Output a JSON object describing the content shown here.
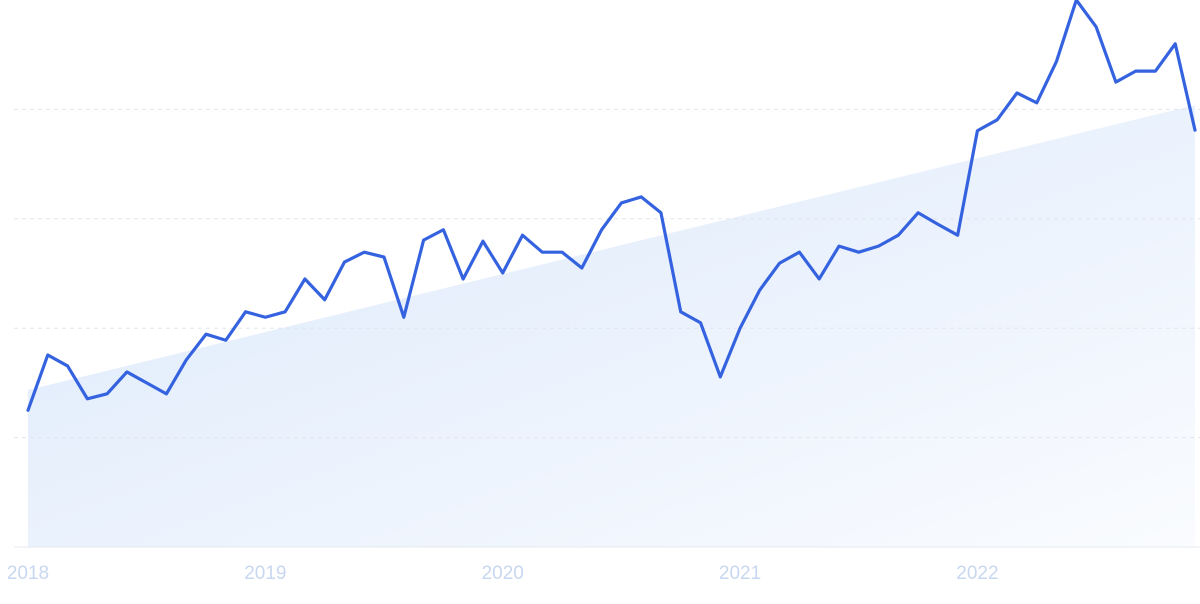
{
  "chart_data": {
    "type": "line",
    "categories": [
      "2018",
      null,
      null,
      null,
      null,
      null,
      null,
      null,
      null,
      null,
      null,
      null,
      "2019",
      null,
      null,
      null,
      null,
      null,
      null,
      null,
      null,
      null,
      null,
      null,
      "2020",
      null,
      null,
      null,
      null,
      null,
      null,
      null,
      null,
      null,
      null,
      null,
      "2021",
      null,
      null,
      null,
      null,
      null,
      null,
      null,
      null,
      null,
      null,
      null,
      "2022",
      null,
      null,
      null,
      null,
      null,
      null,
      null,
      null,
      null,
      null,
      null
    ],
    "series": [
      {
        "color": "#3563e0",
        "values": [
          25.0,
          35.1,
          33.1,
          27.1,
          28.0,
          32.0,
          30.0,
          28.0,
          34.2,
          38.9,
          37.8,
          43.0,
          42.0,
          43.0,
          49.0,
          45.2,
          52.1,
          53.9,
          53.0,
          42.0,
          56.1,
          58.0,
          49.0,
          55.9,
          50.1,
          57.0,
          53.9,
          53.9,
          51.0,
          58.0,
          62.9,
          64.0,
          61.1,
          43.0,
          41.0,
          31.1,
          40.0,
          47.0,
          51.9,
          53.9,
          49.0,
          55.0,
          53.9,
          55.0,
          57.0,
          61.1,
          59.0,
          57.0,
          76.1,
          78.1,
          83.0,
          81.2,
          88.8,
          100,
          95.1,
          85.0,
          87.0,
          87.0,
          92.0,
          76.2
        ]
      }
    ],
    "trend": {
      "color": "#dbe8fb",
      "values": [
        28.7,
        80.8
      ]
    },
    "ylim": [
      0,
      100
    ],
    "yticks": [
      20,
      40,
      60,
      80
    ],
    "grid": true
  }
}
